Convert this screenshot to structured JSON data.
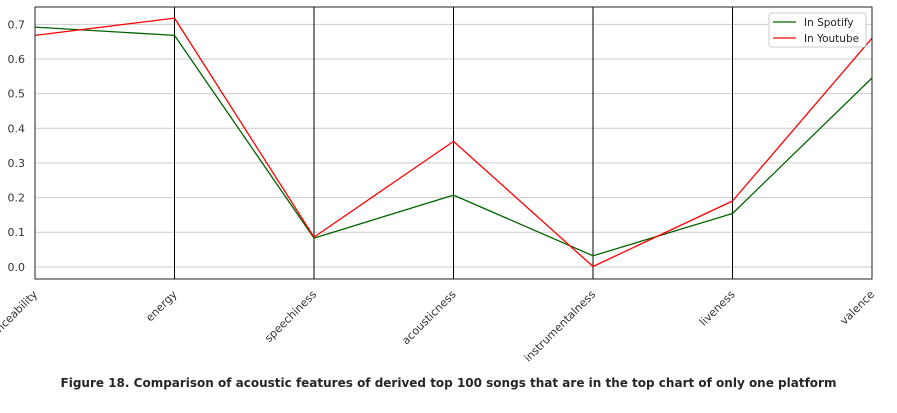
{
  "chart_data": {
    "type": "line",
    "categories": [
      "danceability",
      "energy",
      "speechiness",
      "acousticness",
      "instrumentalness",
      "liveness",
      "valence"
    ],
    "series": [
      {
        "name": "In Spotify",
        "color": "#006400",
        "values": [
          0.692,
          0.668,
          0.083,
          0.207,
          0.032,
          0.154,
          0.545
        ]
      },
      {
        "name": "In Youtube",
        "color": "#ff0000",
        "values": [
          0.668,
          0.718,
          0.086,
          0.362,
          0.001,
          0.19,
          0.66
        ]
      }
    ],
    "ylim": [
      -0.035,
      0.75
    ],
    "yticks": [
      "0.0",
      "0.1",
      "0.2",
      "0.3",
      "0.4",
      "0.5",
      "0.6",
      "0.7"
    ],
    "grid": "horizontal",
    "legend_position": "top-right",
    "xlabel": "",
    "ylabel": ""
  },
  "caption": "Figure 18. Comparison of acoustic features of derived top 100 songs that are in the top chart of only one platform"
}
